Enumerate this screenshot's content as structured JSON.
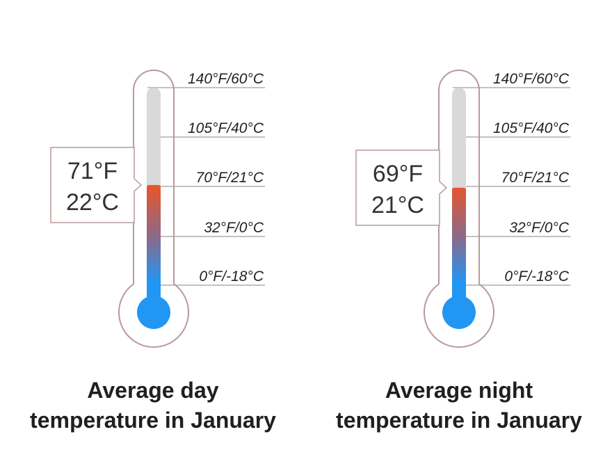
{
  "chart_data": [
    {
      "type": "thermometer",
      "title": [
        "Average day",
        "temperature in January"
      ],
      "value_f": 71,
      "value_c": 22,
      "readout": [
        "71°F",
        "22°C"
      ],
      "scale": [
        {
          "f": 140,
          "c": 60,
          "label": "140°F/60°C"
        },
        {
          "f": 105,
          "c": 40,
          "label": "105°F/40°C"
        },
        {
          "f": 70,
          "c": 21,
          "label": "70°F/21°C"
        },
        {
          "f": 32,
          "c": 0,
          "label": "32°F/0°C"
        },
        {
          "f": 0,
          "c": -18,
          "label": "0°F/-18°C"
        }
      ]
    },
    {
      "type": "thermometer",
      "title": [
        "Average night",
        "temperature in January"
      ],
      "value_f": 69,
      "value_c": 21,
      "readout": [
        "69°F",
        "21°C"
      ],
      "scale": [
        {
          "f": 140,
          "c": 60,
          "label": "140°F/60°C"
        },
        {
          "f": 105,
          "c": 40,
          "label": "105°F/40°C"
        },
        {
          "f": 70,
          "c": 21,
          "label": "70°F/21°C"
        },
        {
          "f": 32,
          "c": 0,
          "label": "32°F/0°C"
        },
        {
          "f": 0,
          "c": -18,
          "label": "0°F/-18°C"
        }
      ]
    }
  ],
  "colors": {
    "mercury_hot": "#e8552e",
    "mercury_cold": "#2196f3",
    "tube_empty": "#d9d9d9",
    "outline": "#b89a9a",
    "tick_line": "#9e9e9e",
    "text": "#222222"
  }
}
